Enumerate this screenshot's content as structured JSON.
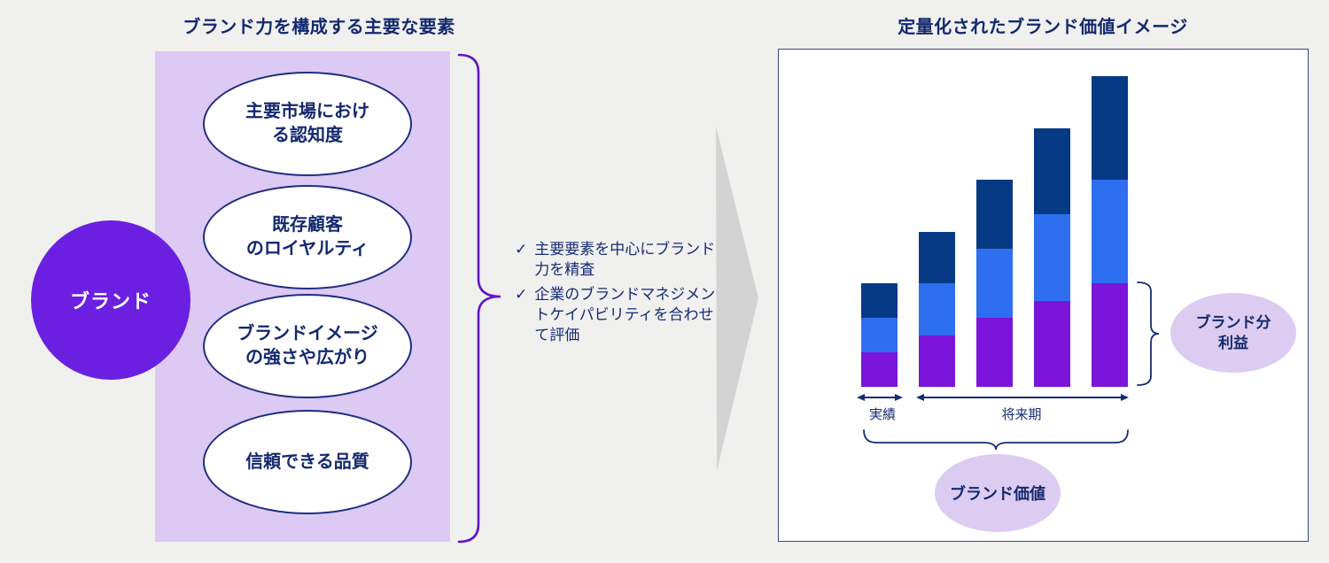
{
  "colors": {
    "background": "#F0F0EF",
    "navy_text": "#13296E",
    "lavender_panel": "#DCC9F4",
    "lavender_label": "#DCCCF1",
    "brand_purple": "#6B1FE0",
    "brace_purple": "#5F16C8",
    "bar_purple": "#7A15D9",
    "bar_blue": "#2E6FF0",
    "bar_navy": "#073A84",
    "arrow_gray": "#D3D3D3",
    "box_border": "#32487F"
  },
  "left_panel": {
    "title": "ブランド力を構成する主要な要素",
    "brand_circle": {
      "label": "ブランド"
    },
    "factors": [
      {
        "text": "主要市場におけ\nる認知度"
      },
      {
        "text": "既存顧客\nのロイヤルティ"
      },
      {
        "text": "ブランドイメージ\nの強さや広がり"
      },
      {
        "text": "信頼できる品質"
      }
    ],
    "check_glyph": "✓",
    "bullets": [
      "主要要素を中心にブランド力を精査",
      "企業のブランドマネジメントケイパビリティを合わせて評価"
    ]
  },
  "right_panel": {
    "title": "定量化されたブランド価値イメージ",
    "axis_labels": {
      "actual": "実績",
      "future": "将来期"
    },
    "brand_profit_label": "ブランド分\n利益",
    "brand_value_label": "ブランド価値"
  },
  "chart_data": {
    "type": "bar",
    "stacked": true,
    "title": "定量化されたブランド価値イメージ",
    "categories": [
      "実績",
      "将来期",
      "将来期",
      "将来期",
      "将来期"
    ],
    "x_group_labels": [
      {
        "label": "実績",
        "bar_indexes": [
          0
        ]
      },
      {
        "label": "将来期",
        "bar_indexes": [
          1,
          2,
          3,
          4
        ]
      }
    ],
    "series": [
      {
        "name": "bottom-purple-segment",
        "color": "#7A15D9",
        "values": [
          1.0,
          1.5,
          2.0,
          2.5,
          3.0
        ]
      },
      {
        "name": "middle-blue-segment",
        "color": "#2E6FF0",
        "values": [
          1.0,
          1.5,
          2.0,
          2.5,
          3.0
        ]
      },
      {
        "name": "top-navy-segment",
        "color": "#073A84",
        "values": [
          1.0,
          1.5,
          2.0,
          2.5,
          3.0
        ]
      }
    ],
    "annotations": [
      {
        "target": "bottom-purple-segment of last bar",
        "label": "ブランド分利益"
      },
      {
        "target": "all bars",
        "label": "ブランド価値"
      }
    ],
    "axes": "none",
    "grid": false,
    "legend": false
  }
}
